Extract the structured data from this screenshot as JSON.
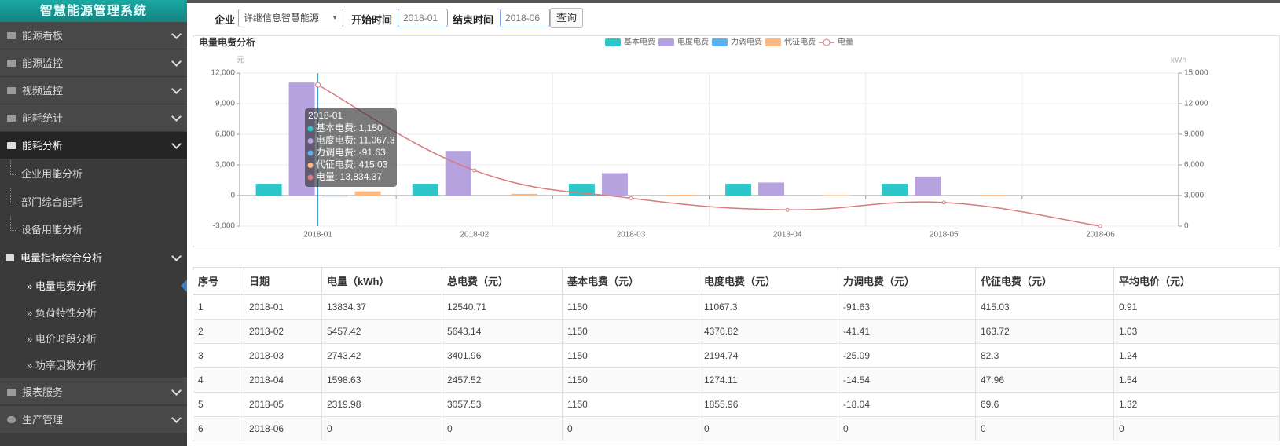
{
  "sidebar": {
    "title": "智慧能源管理系统",
    "menu": [
      "能源看板",
      "能源监控",
      "视频监控",
      "能耗统计",
      "能耗分析"
    ],
    "analysis": [
      "企业用能分析",
      "部门综合能耗",
      "设备用能分析",
      "电量指标综合分析"
    ],
    "power": [
      "电量电费分析",
      "负荷特性分析",
      "电价时段分析",
      "功率因数分析"
    ],
    "bottom": [
      "报表服务",
      "生产管理"
    ]
  },
  "filters": {
    "company_label": "企业",
    "company": "许继信息智慧能源",
    "start_label": "开始时间",
    "start": "2018-01",
    "end_label": "结束时间",
    "end": "2018-06",
    "button": "查询"
  },
  "chart_data": {
    "type": "bar",
    "title": "电量电费分析",
    "y_unit": "元",
    "y2_unit": "kWh",
    "categories": [
      "2018-01",
      "2018-02",
      "2018-03",
      "2018-04",
      "2018-05",
      "2018-06"
    ],
    "series": [
      {
        "name": "基本电费",
        "color": "#2ec7c9",
        "values": [
          1150,
          1150,
          1150,
          1150,
          1150,
          0
        ]
      },
      {
        "name": "电度电费",
        "color": "#b6a2de",
        "values": [
          11067.3,
          4370.82,
          2194.74,
          1274.11,
          1855.96,
          0
        ]
      },
      {
        "name": "力调电费",
        "color": "#5ab1ef",
        "values": [
          -91.63,
          -41.41,
          -25.09,
          -14.54,
          -18.04,
          0
        ]
      },
      {
        "name": "代征电费",
        "color": "#ffb980",
        "values": [
          415.03,
          163.72,
          82.3,
          47.96,
          69.6,
          0
        ]
      },
      {
        "name": "电量",
        "color": "#d87a80",
        "type": "line",
        "axis": "y2",
        "values": [
          13834.37,
          5457.42,
          2743.42,
          1598.63,
          2319.98,
          0
        ]
      }
    ],
    "ylim": [
      -3000,
      12000
    ],
    "yticks": [
      {
        "value": -3000,
        "label": "-3,000"
      },
      0,
      {
        "value": 3000,
        "label": "3,000"
      },
      {
        "value": 6000,
        "label": "6,000"
      },
      {
        "value": 9000,
        "label": "9,000"
      },
      {
        "value": 12000,
        "label": "12,000"
      }
    ],
    "y2lim": [
      0,
      15000
    ],
    "y2ticks": [
      0,
      {
        "value": 3000,
        "label": "3,000"
      },
      {
        "value": 6000,
        "label": "6,000"
      },
      {
        "value": 9000,
        "label": "9,000"
      },
      {
        "value": 12000,
        "label": "12,000"
      },
      {
        "value": 15000,
        "label": "15,000"
      }
    ],
    "grid": true,
    "legend": "top",
    "tooltip": {
      "title": "2018-01",
      "items": [
        "基本电费: 1,150",
        "电度电费: 11,067.3",
        "力调电费: -91.63",
        "代征电费: 415.03",
        "电量: 13,834.37"
      ]
    }
  },
  "table": {
    "headers": [
      "序号",
      "日期",
      "电量（kWh）",
      "总电费（元）",
      "基本电费（元）",
      "电度电费（元）",
      "力调电费（元）",
      "代征电费（元）",
      "平均电价（元）"
    ],
    "rows": [
      [
        1,
        "2018-01",
        13834.37,
        12540.71,
        1150,
        11067.3,
        -91.63,
        415.03,
        0.91
      ],
      [
        2,
        "2018-02",
        5457.42,
        5643.14,
        1150,
        4370.82,
        -41.41,
        163.72,
        1.03
      ],
      [
        3,
        "2018-03",
        2743.42,
        3401.96,
        1150,
        2194.74,
        -25.09,
        82.3,
        1.24
      ],
      [
        4,
        "2018-04",
        1598.63,
        2457.52,
        1150,
        1274.11,
        -14.54,
        47.96,
        1.54
      ],
      [
        5,
        "2018-05",
        2319.98,
        3057.53,
        1150,
        1855.96,
        -18.04,
        69.6,
        1.32
      ],
      [
        6,
        "2018-06",
        0,
        0,
        0,
        0,
        0,
        0,
        0
      ]
    ]
  }
}
